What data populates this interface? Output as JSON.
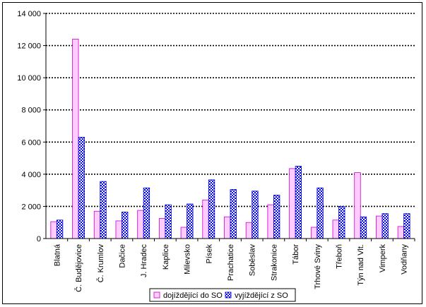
{
  "chart_data": {
    "type": "bar",
    "categories": [
      "Blatná",
      "Č. Budějovice",
      "Č. Krumlov",
      "Dačice",
      "J. Hradec",
      "Kaplice",
      "Milevsko",
      "Písek",
      "Prachatice",
      "Soběslav",
      "Strakonice",
      "Tábor",
      "Trhové Sviny",
      "Třeboň",
      "Týn nad Vlt.",
      "Vimperk",
      "Vodňany"
    ],
    "series": [
      {
        "name": "dojíždějící do SO",
        "color": "#ffccff",
        "edge": "#cc00cc",
        "pattern": "solid",
        "values": [
          1050,
          12400,
          1700,
          1100,
          1750,
          1250,
          700,
          2400,
          1350,
          1000,
          2100,
          4350,
          700,
          1150,
          4100,
          1400,
          750
        ]
      },
      {
        "name": "vyjíždějící z SO",
        "color": "#0000ff",
        "edge": "#0000cc",
        "pattern": "checker",
        "values": [
          1150,
          6300,
          3550,
          1650,
          3150,
          2100,
          2150,
          3650,
          3050,
          2950,
          2700,
          4500,
          3150,
          2000,
          1350,
          1550,
          1550
        ]
      }
    ],
    "ylim": [
      0,
      14000
    ],
    "yticks": [
      0,
      2000,
      4000,
      6000,
      8000,
      10000,
      12000,
      14000
    ],
    "ytick_labels": [
      "0",
      "2 000",
      "4 000",
      "6 000",
      "8 000",
      "10 000",
      "12 000",
      "14 000"
    ],
    "grid": "horizontal dotted",
    "legend": "bottom"
  }
}
